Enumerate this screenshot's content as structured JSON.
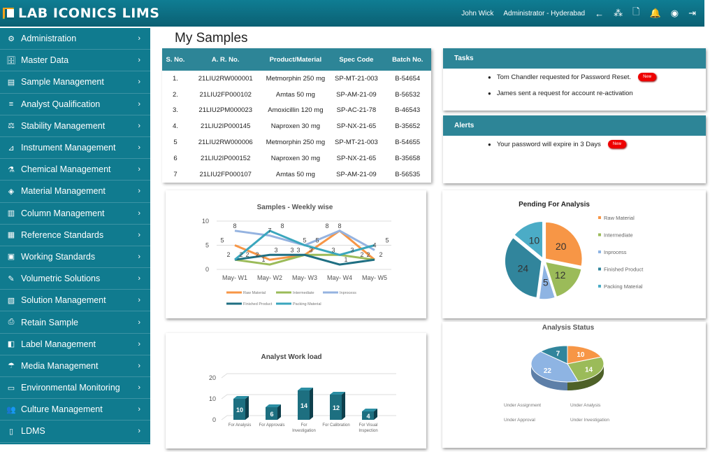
{
  "header": {
    "app_name": "LAB ICONICS LIMS",
    "user": "John Wick",
    "role": "Administrator - Hyderabad",
    "icons": [
      "back-arrow-icon",
      "users-icon",
      "document-settings-icon",
      "bell-icon",
      "user-circle-icon",
      "logout-icon"
    ]
  },
  "sidebar": {
    "items": [
      {
        "label": "Administration",
        "icon": "⚙"
      },
      {
        "label": "Master Data",
        "icon": "🗄"
      },
      {
        "label": "Sample Management",
        "icon": "▤"
      },
      {
        "label": "Analyst Qualification",
        "icon": "≡"
      },
      {
        "label": "Stability Management",
        "icon": "⚖"
      },
      {
        "label": "Instrument Management",
        "icon": "⊿"
      },
      {
        "label": "Chemical Management",
        "icon": "⚗"
      },
      {
        "label": "Material Management",
        "icon": "◈"
      },
      {
        "label": "Column Management",
        "icon": "▥"
      },
      {
        "label": "Reference Standards",
        "icon": "▦"
      },
      {
        "label": "Working Standards",
        "icon": "▣"
      },
      {
        "label": "Volumetric Solutions",
        "icon": "✎"
      },
      {
        "label": "Solution Management",
        "icon": "▧"
      },
      {
        "label": "Retain Sample",
        "icon": "⎙"
      },
      {
        "label": "Label Management",
        "icon": "◧"
      },
      {
        "label": "Media Management",
        "icon": "☂"
      },
      {
        "label": "Environmental Monitoring",
        "icon": "▭"
      },
      {
        "label": "Culture Management",
        "icon": "👥"
      },
      {
        "label": "LDMS",
        "icon": "▯"
      }
    ]
  },
  "main": {
    "title": "My Samples",
    "table": {
      "columns": [
        "S. No.",
        "A. R. No.",
        "Product/Material",
        "Spec Code",
        "Batch No."
      ],
      "rows": [
        [
          "1.",
          "21LIU2RW000001",
          "Metmorphin 250 mg",
          "SP-MT-21-003",
          "B-54654"
        ],
        [
          "2.",
          "21LIU2FP000102",
          "Amtas 50 mg",
          "SP-AM-21-09",
          "B-56532"
        ],
        [
          "3.",
          "21LIU2PM000023",
          "Amoxicillin 120 mg",
          "SP-AC-21-78",
          "B-46543"
        ],
        [
          "4.",
          "21LIU2IP000145",
          "Naproxen 30 mg",
          "SP-NX-21-65",
          "B-35652"
        ],
        [
          "5",
          "21LIU2RW000006",
          "Metmorphin 250 mg",
          "SP-MT-21-003",
          "B-54655"
        ],
        [
          "6",
          "21LIU2IP000152",
          "Naproxen 30 mg",
          "SP-NX-21-65",
          "B-35658"
        ],
        [
          "7",
          "21LIU2FP000107",
          "Amtas 50 mg",
          "SP-AM-21-09",
          "B-56535"
        ]
      ]
    },
    "tasks": {
      "title": "Tasks",
      "items": [
        {
          "text": "Tom Chandler requested for Password Reset.",
          "badge": "New"
        },
        {
          "text": "James sent a request for account re-activation"
        }
      ]
    },
    "alerts": {
      "title": "Alerts",
      "items": [
        {
          "text": "Your password will expire in 3  Days",
          "badge": "New"
        }
      ]
    }
  },
  "chart_data": [
    {
      "type": "line",
      "title": "Samples - Weekly wise",
      "categories": [
        "May- W1",
        "May- W2",
        "May- W3",
        "May- W4",
        "May- W5"
      ],
      "ylim": [
        0,
        10
      ],
      "yticks": [
        0,
        5,
        10
      ],
      "legend": "bottom",
      "series": [
        {
          "name": "Raw Material",
          "color": "#f79646",
          "values": [
            5,
            2,
            3,
            8,
            2
          ]
        },
        {
          "name": "Intermediate",
          "color": "#9bbb59",
          "values": [
            2,
            1,
            3,
            3,
            2
          ]
        },
        {
          "name": "Inprocess",
          "color": "#95b3e0",
          "values": [
            8,
            7,
            5,
            8,
            4
          ]
        },
        {
          "name": "Finished Product",
          "color": "#1f6f82",
          "values": [
            2,
            3,
            3,
            1,
            2
          ]
        },
        {
          "name": "Packing Material",
          "color": "#3aa6bd",
          "values": [
            2,
            8,
            5,
            3,
            5
          ]
        }
      ]
    },
    {
      "type": "pie",
      "title": "Pending For Analysis",
      "legend": "right",
      "categories": [
        "Raw Material",
        "Intermediate",
        "Inprocess",
        "Finished Product",
        "Packing Material"
      ],
      "values": [
        20,
        12,
        5,
        24,
        10
      ],
      "colors": [
        "#f79646",
        "#9bbb59",
        "#8eb4e3",
        "#31859c",
        "#4bacc6"
      ]
    },
    {
      "type": "bar",
      "title": "Analyst Work load",
      "categories": [
        "For Analysis",
        "For Approvals",
        "For Investigation",
        "For Calibration",
        "For Visual Inspection"
      ],
      "values": [
        10,
        6,
        14,
        12,
        4
      ],
      "ylim": [
        0,
        20
      ],
      "yticks": [
        0,
        10,
        20
      ],
      "color": "#1d6f80"
    },
    {
      "type": "pie",
      "title": "Analysis Status",
      "legend": "bottom",
      "categories": [
        "Under Assignment",
        "Under Analysis",
        "Under Approval",
        "Under Investigation"
      ],
      "values": [
        10,
        14,
        22,
        7
      ],
      "colors": [
        "#f79646",
        "#9bbb59",
        "#8eb4e3",
        "#31859c"
      ]
    }
  ]
}
